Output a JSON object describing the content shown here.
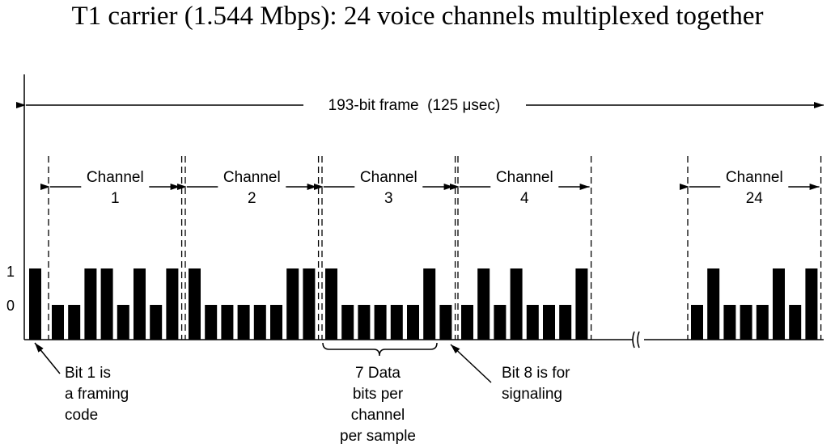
{
  "title": "T1 carrier (1.544 Mbps): 24 voice channels multiplexed together",
  "frame_label": "193-bit frame  (125 μsec)",
  "channel_word": "Channel",
  "axis": {
    "high": "1",
    "low": "0"
  },
  "framing_bit": 1,
  "channels": [
    {
      "number": "1",
      "bits": [
        0,
        0,
        1,
        1,
        0,
        1,
        0,
        1
      ]
    },
    {
      "number": "2",
      "bits": [
        1,
        0,
        0,
        0,
        0,
        0,
        1,
        1
      ]
    },
    {
      "number": "3",
      "bits": [
        1,
        0,
        0,
        0,
        0,
        0,
        1,
        0
      ]
    },
    {
      "number": "4",
      "bits": [
        0,
        1,
        0,
        1,
        0,
        0,
        0,
        1
      ]
    },
    {
      "number": "24",
      "bits": [
        0,
        1,
        0,
        0,
        0,
        1,
        0,
        1
      ]
    }
  ],
  "annotations": {
    "framing": [
      "Bit 1 is",
      "a framing",
      "code"
    ],
    "data_bits": [
      "7 Data",
      "bits per",
      "channel",
      "per sample"
    ],
    "signaling": [
      "Bit 8 is for",
      "signaling"
    ]
  }
}
